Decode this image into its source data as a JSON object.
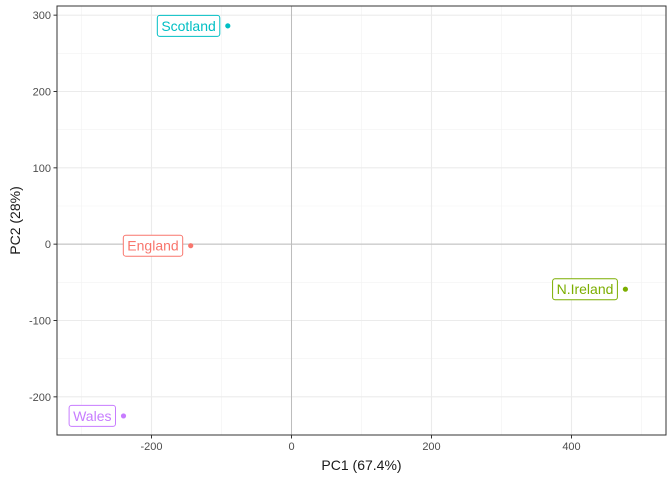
{
  "chart_data": {
    "type": "scatter",
    "title": "",
    "xlabel": "PC1 (67.4%)",
    "ylabel": "PC2 (28%)",
    "xlim": [
      -335,
      535
    ],
    "ylim": [
      -250,
      312
    ],
    "x_ticks": [
      -200,
      0,
      200,
      400
    ],
    "y_ticks": [
      -200,
      -100,
      0,
      100,
      200,
      300
    ],
    "x_tick_labels": [
      "-200",
      "0",
      "200",
      "400"
    ],
    "y_tick_labels": [
      "-200",
      "-100",
      "0",
      "100",
      "200",
      "300"
    ],
    "grid": true,
    "zero_lines": true,
    "legend": "none",
    "points": [
      {
        "label": "England",
        "x": -144,
        "y": -2,
        "color": "#F8766D"
      },
      {
        "label": "Wales",
        "x": -240,
        "y": -225,
        "color": "#C77CFF"
      },
      {
        "label": "Scotland",
        "x": -91,
        "y": 286,
        "color": "#00BFC4"
      },
      {
        "label": "N.Ireland",
        "x": 477,
        "y": -59,
        "color": "#7CAE00"
      }
    ]
  }
}
